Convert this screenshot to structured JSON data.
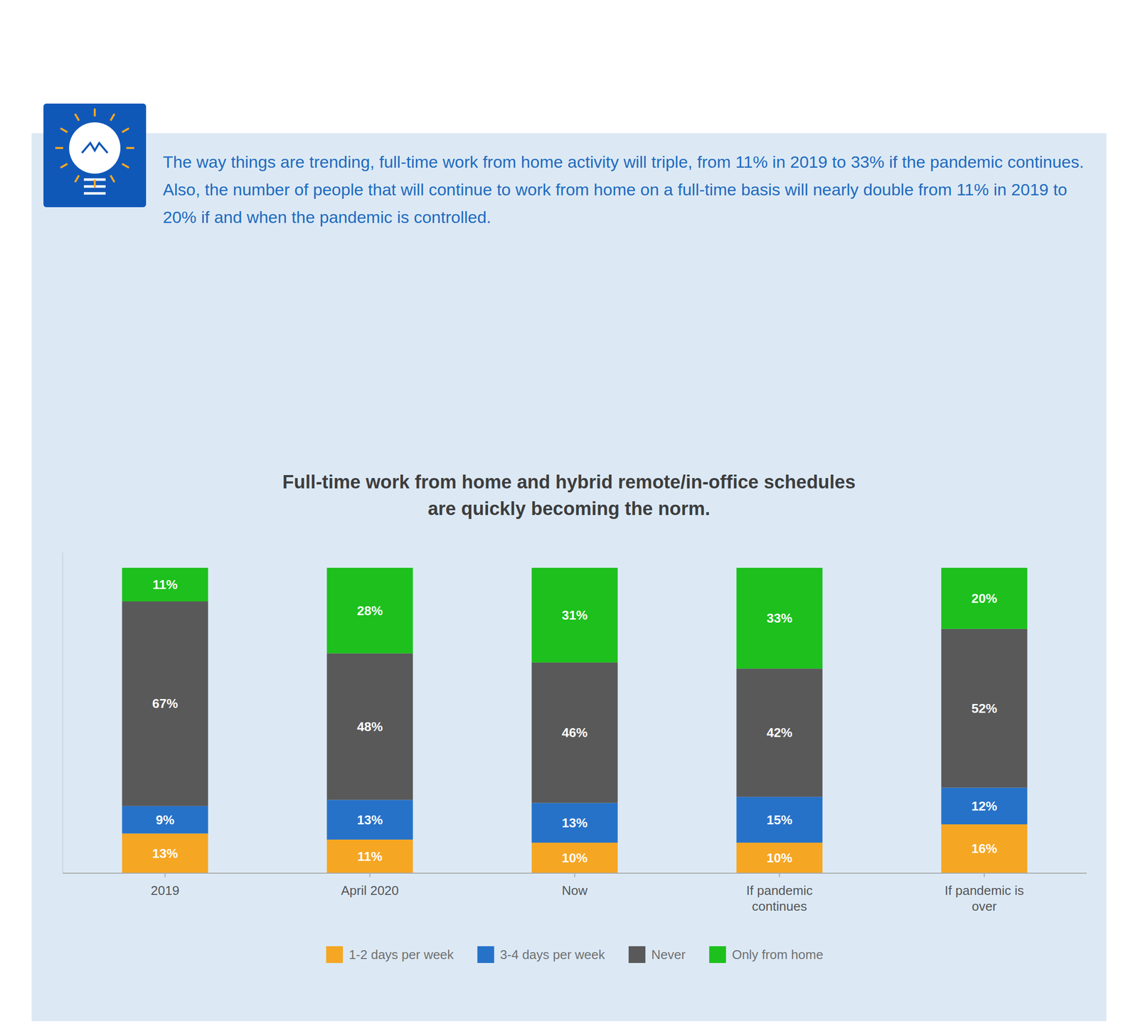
{
  "chart_data": {
    "type": "bar",
    "title": "Full-time work from home and hybrid remote/in-office schedules\nare quickly becoming the norm.",
    "subtitle": "The way things are trending, full-time work from home activity will triple, from 11% in 2019 to 33% if the pandemic continues. Also, the number of people that will continue to work from home on a full-time basis will nearly double from 11% in 2019 to 20% if and when the pandemic is controlled.",
    "categories": [
      "2019",
      "April 2020",
      "Now",
      "If pandemic\ncontinues",
      "If pandemic is\nover"
    ],
    "series": [
      {
        "name": "1-2 days per week",
        "color": "#F5A623",
        "values": [
          13,
          11,
          10,
          10,
          16
        ],
        "value_labels": [
          "13%",
          "11%",
          "10%",
          "10%",
          "16%"
        ]
      },
      {
        "name": "3-4 days per week",
        "color": "#2672C8",
        "values": [
          9,
          13,
          13,
          15,
          12
        ],
        "value_labels": [
          "9%",
          "13%",
          "13%",
          "15%",
          "12%"
        ]
      },
      {
        "name": "Never",
        "color": "#595959",
        "values": [
          67,
          48,
          46,
          42,
          52
        ],
        "value_labels": [
          "67%",
          "48%",
          "46%",
          "42%",
          "52%"
        ]
      },
      {
        "name": "Only from home",
        "color": "#1DC01D",
        "values": [
          11,
          28,
          31,
          33,
          20
        ],
        "value_labels": [
          "11%",
          "28%",
          "31%",
          "33%",
          "20%"
        ]
      }
    ],
    "stacked": true,
    "ylim": [
      0,
      105
    ],
    "data_labels": true,
    "tick_labels": "x",
    "grid": false,
    "legend": "bottom"
  }
}
